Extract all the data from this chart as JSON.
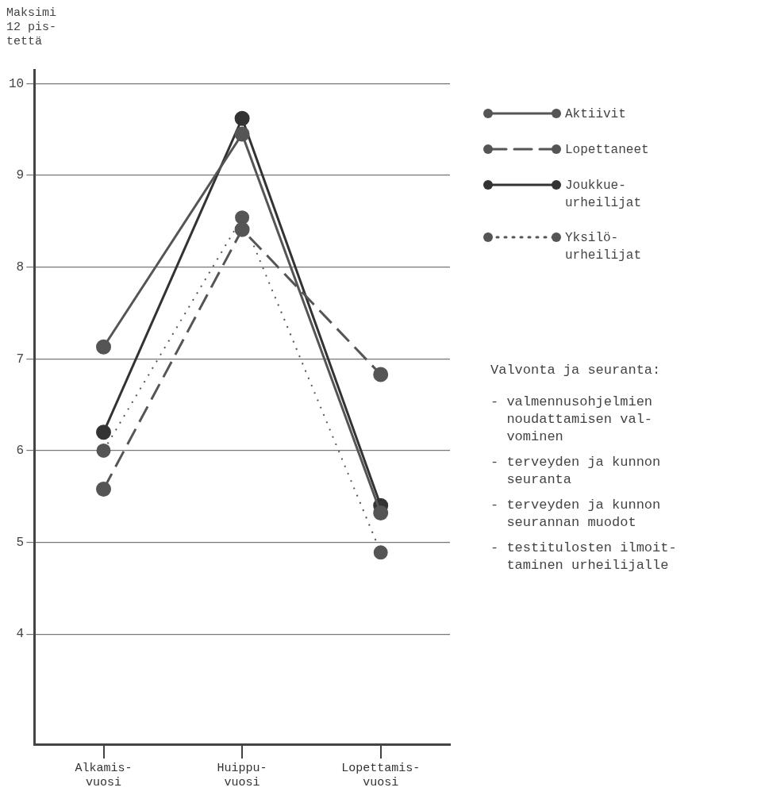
{
  "chart_data": {
    "type": "line",
    "ylabel": "Maksimi\n12 pis-\ntettä",
    "categories": [
      "Alkamis-\nvuosi",
      "Huippu-\nvuosi",
      "Lopettamis-\nvuosi"
    ],
    "ylim": [
      2.8,
      10.15
    ],
    "yticks": [
      4,
      5,
      6,
      7,
      8,
      9,
      10
    ],
    "grid": "y",
    "legend": "right",
    "marker": "circle",
    "series": [
      {
        "name": "Aktiivit",
        "color": "#555555",
        "line_style": "solid",
        "values": [
          7.13,
          9.45,
          5.32
        ]
      },
      {
        "name": "Lopettaneet",
        "color": "#555555",
        "line_style": "dashed",
        "values": [
          5.58,
          8.41,
          6.83
        ]
      },
      {
        "name": "Joukkue-\nurheilijat",
        "color": "#333333",
        "line_style": "solid",
        "values": [
          6.2,
          9.62,
          5.4
        ]
      },
      {
        "name": "Yksilö-\nurheilijat",
        "color": "#555555",
        "line_style": "dotted",
        "values": [
          6.0,
          8.54,
          4.89
        ]
      }
    ],
    "annotations": [
      "Valvonta ja seuranta:",
      "- valmennusohjelmien\n  noudattamisen val-\n  vominen",
      "- terveyden ja kunnon\n  seuranta",
      "- terveyden ja kunnon\n  seurannan muodot",
      "- testitulosten ilmoit-\n  taminen urheilijalle"
    ]
  }
}
